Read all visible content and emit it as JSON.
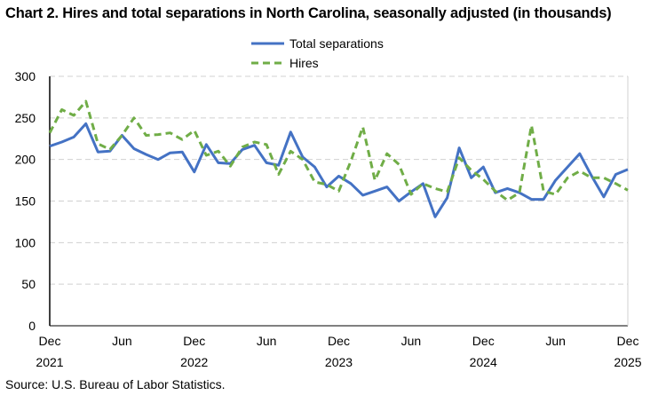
{
  "chart_data": {
    "type": "line",
    "title": "Chart 2. Hires and total separations in North Carolina, seasonally adjusted (in thousands)",
    "source": "Source: U.S. Bureau of Labor Statistics.",
    "x_start": "Dec 2021",
    "x_end": "Dec 2025",
    "x_tick_labels": [
      {
        "month": "Dec",
        "year": "2021",
        "index": 0
      },
      {
        "month": "Jun",
        "year": "",
        "index": 6
      },
      {
        "month": "Dec",
        "year": "2022",
        "index": 12
      },
      {
        "month": "Jun",
        "year": "",
        "index": 18
      },
      {
        "month": "Dec",
        "year": "2023",
        "index": 24
      },
      {
        "month": "Jun",
        "year": "",
        "index": 30
      },
      {
        "month": "Dec",
        "year": "2024",
        "index": 36
      },
      {
        "month": "Jun",
        "year": "",
        "index": 42
      },
      {
        "month": "Dec",
        "year": "2025",
        "index": 48
      }
    ],
    "ylim": [
      0,
      300
    ],
    "y_ticks": [
      0,
      50,
      100,
      150,
      200,
      250,
      300
    ],
    "grid": true,
    "legend_position": "top-center",
    "series": [
      {
        "name": "Total separations",
        "color": "#4472C4",
        "style": "solid",
        "values": [
          216,
          221,
          227,
          243,
          209,
          210,
          229,
          213,
          206,
          200,
          208,
          209,
          185,
          218,
          196,
          195,
          212,
          217,
          196,
          193,
          233,
          203,
          191,
          167,
          180,
          171,
          157,
          162,
          167,
          150,
          161,
          171,
          131,
          154,
          214,
          178,
          191,
          160,
          165,
          160,
          152,
          152,
          175,
          191,
          207,
          180,
          155,
          182,
          188
        ]
      },
      {
        "name": "Hires",
        "color": "#70AD47",
        "style": "dashed",
        "values": [
          232,
          260,
          253,
          270,
          219,
          212,
          229,
          250,
          229,
          230,
          232,
          224,
          235,
          205,
          210,
          192,
          215,
          221,
          218,
          182,
          210,
          200,
          173,
          170,
          162,
          198,
          239,
          175,
          207,
          194,
          158,
          171,
          165,
          161,
          202,
          187,
          176,
          162,
          151,
          160,
          241,
          162,
          158,
          178,
          186,
          178,
          178,
          171,
          163
        ]
      }
    ]
  }
}
